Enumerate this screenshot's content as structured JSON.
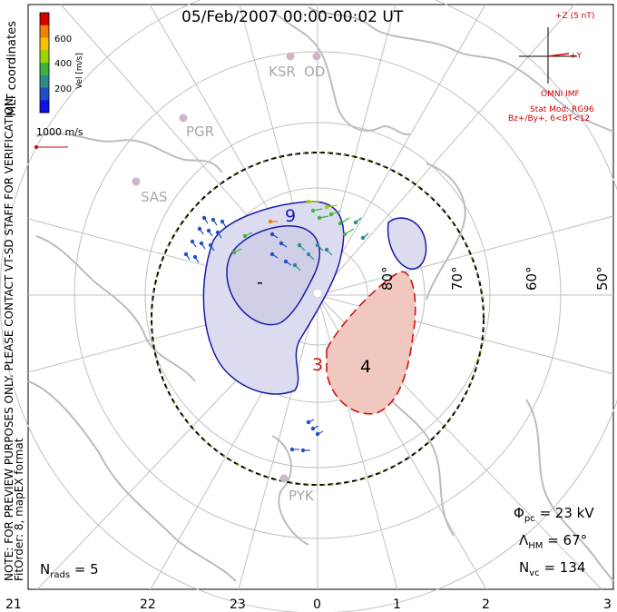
{
  "title": "05/Feb/2007 00:00-00:02 UT",
  "coordinates_label": "MLT coordinates",
  "colorbar": {
    "label": "Vel [m/s]",
    "ticks": [
      "600",
      "400",
      "200"
    ],
    "colors": [
      "#d40000",
      "#f08000",
      "#f4c000",
      "#9cd400",
      "#3cb43c",
      "#2e8b8b",
      "#2050c8",
      "#1010e0"
    ]
  },
  "velocity_scale": "1000 m/s",
  "preview_note": "NOTE: FOR PREVIEW PURPOSES ONLY. PLEASE CONTACT VT-SD STAFF FOR VERIFICATION.",
  "fit_info": "FitOrder: 8, mapEX format",
  "imf": {
    "z_label": "+Z (5 nT)",
    "y_label": "+Y",
    "source": "OMNI IMF",
    "model": "Stat Mod: RG96",
    "conditions": "Bz+/By+, 6<BT<12"
  },
  "stations": [
    "KSR",
    "OD",
    "PGR",
    "SAS",
    "PYK"
  ],
  "latitude_labels": [
    "80°",
    "70°",
    "60°",
    "50°"
  ],
  "mlt_labels": [
    "21",
    "22",
    "23",
    "0",
    "1",
    "2",
    "3"
  ],
  "potential_labels": {
    "max": "9",
    "min": "-",
    "min2": "4",
    "neg": "3"
  },
  "stats": {
    "phi_pc": "Φ",
    "phi_pc_sub": "pc",
    "phi_pc_value": "= 23 kV",
    "lambda_hm": "Λ",
    "lambda_hm_sub": "HM",
    "lambda_hm_value": "= 67°",
    "n_vc": "N",
    "n_vc_sub": "vc",
    "n_vc_value": "= 134",
    "n_rads": "N",
    "n_rads_sub": "rads",
    "n_rads_value": "= 5"
  },
  "colors": {
    "positive_fill": "#dcdcf0",
    "positive_line": "#1a1aa8",
    "negative_fill": "#f0c8c0",
    "negative_line": "#d01010",
    "grid": "#c0c0c0",
    "land": "#bcbcbc"
  }
}
